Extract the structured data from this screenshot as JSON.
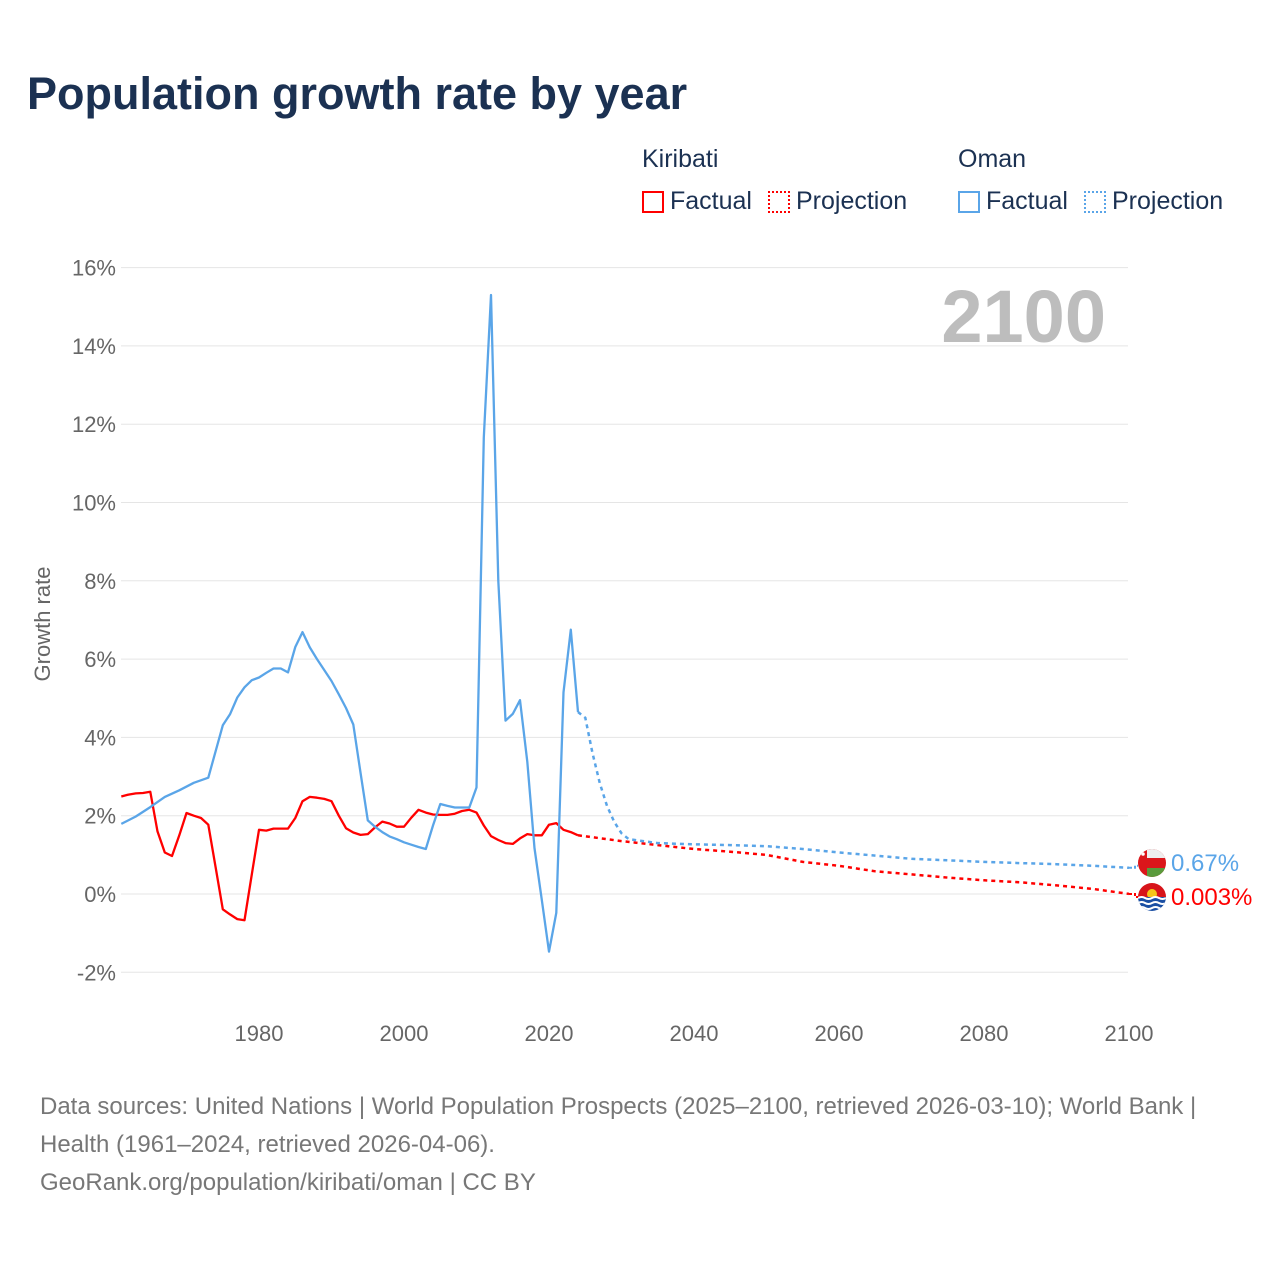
{
  "chart_data": {
    "type": "line",
    "title": "Population growth rate by year",
    "ylabel": "Growth rate",
    "xlabel": "",
    "xlim": [
      1961,
      2100
    ],
    "ylim": [
      -3,
      16.5
    ],
    "x_ticks": [
      1980,
      2000,
      2020,
      2040,
      2060,
      2080,
      2100
    ],
    "y_ticks": [
      -2,
      0,
      2,
      4,
      6,
      8,
      10,
      12,
      14,
      16
    ],
    "y_tick_labels": [
      "-2%",
      "0%",
      "2%",
      "4%",
      "6%",
      "8%",
      "10%",
      "12%",
      "14%",
      "16%"
    ],
    "year_watermark": "2100",
    "grid": true,
    "legend_placement": "top-right",
    "legend": {
      "groups": [
        {
          "name": "Kiribati",
          "factual_label": "Factual",
          "projection_label": "Projection"
        },
        {
          "name": "Oman",
          "factual_label": "Factual",
          "projection_label": "Projection"
        }
      ]
    },
    "series": [
      {
        "name": "Kiribati",
        "color": "#ff0000",
        "end_label": "0.003%",
        "flag": "kiribati-flag",
        "factual": [
          [
            1961,
            2.49
          ],
          [
            1962,
            2.54
          ],
          [
            1963,
            2.57
          ],
          [
            1964,
            2.58
          ],
          [
            1965,
            2.61
          ],
          [
            1966,
            1.6
          ],
          [
            1967,
            1.06
          ],
          [
            1968,
            0.97
          ],
          [
            1969,
            1.5
          ],
          [
            1970,
            2.07
          ],
          [
            1971,
            2.0
          ],
          [
            1972,
            1.94
          ],
          [
            1973,
            1.77
          ],
          [
            1974,
            0.7
          ],
          [
            1975,
            -0.39
          ],
          [
            1976,
            -0.52
          ],
          [
            1977,
            -0.64
          ],
          [
            1978,
            -0.67
          ],
          [
            1979,
            0.5
          ],
          [
            1980,
            1.64
          ],
          [
            1981,
            1.62
          ],
          [
            1982,
            1.67
          ],
          [
            1983,
            1.67
          ],
          [
            1984,
            1.67
          ],
          [
            1985,
            1.94
          ],
          [
            1986,
            2.37
          ],
          [
            1987,
            2.48
          ],
          [
            1988,
            2.46
          ],
          [
            1989,
            2.43
          ],
          [
            1990,
            2.37
          ],
          [
            1991,
            2.0
          ],
          [
            1992,
            1.68
          ],
          [
            1993,
            1.57
          ],
          [
            1994,
            1.51
          ],
          [
            1995,
            1.53
          ],
          [
            1996,
            1.7
          ],
          [
            1997,
            1.85
          ],
          [
            1998,
            1.8
          ],
          [
            1999,
            1.72
          ],
          [
            2000,
            1.72
          ],
          [
            2001,
            1.95
          ],
          [
            2002,
            2.15
          ],
          [
            2003,
            2.08
          ],
          [
            2004,
            2.03
          ],
          [
            2005,
            2.02
          ],
          [
            2006,
            2.02
          ],
          [
            2007,
            2.05
          ],
          [
            2008,
            2.12
          ],
          [
            2009,
            2.15
          ],
          [
            2010,
            2.08
          ],
          [
            2011,
            1.75
          ],
          [
            2012,
            1.48
          ],
          [
            2013,
            1.38
          ],
          [
            2014,
            1.3
          ],
          [
            2015,
            1.28
          ],
          [
            2016,
            1.42
          ],
          [
            2017,
            1.53
          ],
          [
            2018,
            1.5
          ],
          [
            2019,
            1.5
          ],
          [
            2020,
            1.77
          ],
          [
            2021,
            1.81
          ],
          [
            2022,
            1.64
          ],
          [
            2023,
            1.58
          ],
          [
            2024,
            1.5
          ]
        ],
        "projection": [
          [
            2024,
            1.5
          ],
          [
            2030,
            1.35
          ],
          [
            2035,
            1.25
          ],
          [
            2040,
            1.15
          ],
          [
            2045,
            1.08
          ],
          [
            2050,
            1.0
          ],
          [
            2055,
            0.82
          ],
          [
            2060,
            0.72
          ],
          [
            2065,
            0.58
          ],
          [
            2070,
            0.5
          ],
          [
            2075,
            0.42
          ],
          [
            2080,
            0.35
          ],
          [
            2085,
            0.3
          ],
          [
            2090,
            0.22
          ],
          [
            2095,
            0.13
          ],
          [
            2100,
            0.003
          ]
        ]
      },
      {
        "name": "Oman",
        "color": "#5aa5e8",
        "end_label": "0.67%",
        "flag": "oman-flag",
        "factual": [
          [
            1961,
            1.79
          ],
          [
            1963,
            1.98
          ],
          [
            1965,
            2.22
          ],
          [
            1967,
            2.48
          ],
          [
            1969,
            2.65
          ],
          [
            1971,
            2.84
          ],
          [
            1973,
            2.97
          ],
          [
            1975,
            4.31
          ],
          [
            1976,
            4.59
          ],
          [
            1977,
            5.02
          ],
          [
            1978,
            5.28
          ],
          [
            1979,
            5.46
          ],
          [
            1980,
            5.53
          ],
          [
            1981,
            5.65
          ],
          [
            1982,
            5.76
          ],
          [
            1983,
            5.76
          ],
          [
            1984,
            5.66
          ],
          [
            1985,
            6.31
          ],
          [
            1986,
            6.69
          ],
          [
            1987,
            6.3
          ],
          [
            1988,
            6.0
          ],
          [
            1989,
            5.72
          ],
          [
            1990,
            5.44
          ],
          [
            1991,
            5.1
          ],
          [
            1992,
            4.75
          ],
          [
            1993,
            4.33
          ],
          [
            1994,
            3.1
          ],
          [
            1995,
            1.88
          ],
          [
            1996,
            1.72
          ],
          [
            1997,
            1.58
          ],
          [
            1998,
            1.47
          ],
          [
            1999,
            1.4
          ],
          [
            2000,
            1.32
          ],
          [
            2001,
            1.26
          ],
          [
            2002,
            1.2
          ],
          [
            2003,
            1.15
          ],
          [
            2004,
            1.75
          ],
          [
            2005,
            2.3
          ],
          [
            2006,
            2.25
          ],
          [
            2007,
            2.21
          ],
          [
            2008,
            2.21
          ],
          [
            2009,
            2.21
          ],
          [
            2010,
            2.72
          ],
          [
            2011,
            11.66
          ],
          [
            2012,
            15.3
          ],
          [
            2013,
            8.0
          ],
          [
            2014,
            4.43
          ],
          [
            2015,
            4.6
          ],
          [
            2016,
            4.95
          ],
          [
            2017,
            3.38
          ],
          [
            2018,
            1.17
          ],
          [
            2019,
            -0.15
          ],
          [
            2020,
            -1.47
          ],
          [
            2021,
            -0.48
          ],
          [
            2022,
            5.15
          ],
          [
            2023,
            6.75
          ],
          [
            2024,
            4.65
          ]
        ],
        "projection": [
          [
            2024,
            4.65
          ],
          [
            2025,
            4.5
          ],
          [
            2026,
            3.6
          ],
          [
            2027,
            2.83
          ],
          [
            2028,
            2.25
          ],
          [
            2029,
            1.84
          ],
          [
            2030,
            1.55
          ],
          [
            2031,
            1.4
          ],
          [
            2035,
            1.3
          ],
          [
            2040,
            1.27
          ],
          [
            2045,
            1.25
          ],
          [
            2050,
            1.22
          ],
          [
            2055,
            1.15
          ],
          [
            2060,
            1.06
          ],
          [
            2065,
            0.98
          ],
          [
            2070,
            0.9
          ],
          [
            2075,
            0.86
          ],
          [
            2080,
            0.82
          ],
          [
            2085,
            0.79
          ],
          [
            2090,
            0.76
          ],
          [
            2095,
            0.72
          ],
          [
            2100,
            0.67
          ]
        ]
      }
    ]
  },
  "footer": {
    "sources": "Data sources: United Nations | World Population Prospects (2025–2100, retrieved 2026-03-10); World Bank | Health (1961–2024, retrieved 2026-04-06).",
    "credit": "GeoRank.org/population/kiribati/oman | CC BY"
  }
}
